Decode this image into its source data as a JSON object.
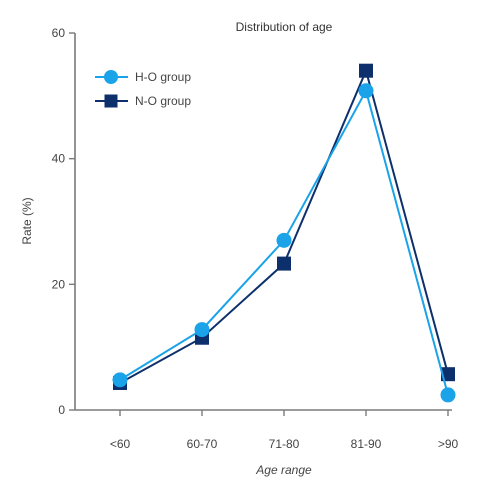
{
  "chart_data": {
    "type": "line",
    "title": "Distribution of age",
    "xlabel": "Age range",
    "ylabel": "Rate (%)",
    "categories": [
      "<60",
      "60-70",
      "71-80",
      "81-90",
      ">90"
    ],
    "ylim": [
      0,
      60
    ],
    "yticks": [
      0,
      20,
      40,
      60
    ],
    "grid": false,
    "legend_position": "top-left",
    "series": [
      {
        "name": "H-O group",
        "values": [
          4.8,
          12.8,
          27.0,
          50.8,
          2.4
        ],
        "color": "#1aa3e8",
        "marker": "circle"
      },
      {
        "name": "N-O group",
        "values": [
          4.3,
          11.5,
          23.3,
          54.0,
          5.7
        ],
        "color": "#0d2f6b",
        "marker": "square"
      }
    ]
  }
}
